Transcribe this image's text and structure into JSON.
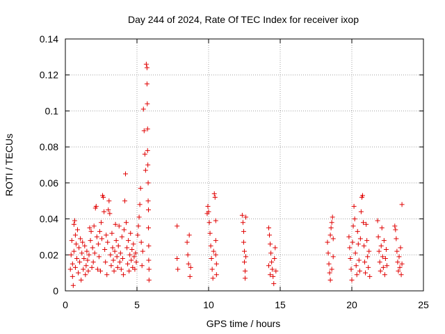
{
  "chart_data": {
    "type": "scatter",
    "title": "Day 244 of 2024, Rate Of TEC Index for receiver ixop",
    "xlabel": "GPS time / hours",
    "ylabel": "ROTI / TECUs",
    "xlim": [
      0,
      25
    ],
    "ylim": [
      0,
      0.14
    ],
    "xticks": [
      0,
      5,
      10,
      15,
      20,
      25
    ],
    "xtick_labels": [
      "0",
      "5",
      "10",
      "15",
      "20",
      "25"
    ],
    "yticks": [
      0,
      0.02,
      0.04,
      0.06,
      0.08,
      0.1,
      0.12,
      0.14
    ],
    "ytick_labels": [
      "0",
      "0.02",
      "0.04",
      "0.06",
      "0.08",
      "0.1",
      "0.12",
      "0.14"
    ],
    "grid": true,
    "marker": "+",
    "color": "#e00000",
    "series": [
      {
        "name": "ROTI",
        "points": [
          [
            0.35,
            0.012
          ],
          [
            0.4,
            0.02
          ],
          [
            0.45,
            0.028
          ],
          [
            0.5,
            0.015
          ],
          [
            0.5,
            0.008
          ],
          [
            0.55,
            0.003
          ],
          [
            0.6,
            0.037
          ],
          [
            0.6,
            0.022
          ],
          [
            0.65,
            0.039
          ],
          [
            0.7,
            0.031
          ],
          [
            0.7,
            0.013
          ],
          [
            0.75,
            0.026
          ],
          [
            0.8,
            0.018
          ],
          [
            0.85,
            0.034
          ],
          [
            0.9,
            0.01
          ],
          [
            0.95,
            0.024
          ],
          [
            1.0,
            0.016
          ],
          [
            1.05,
            0.029
          ],
          [
            1.1,
            0.006
          ],
          [
            1.15,
            0.021
          ],
          [
            1.2,
            0.027
          ],
          [
            1.25,
            0.012
          ],
          [
            1.3,
            0.018
          ],
          [
            1.35,
            0.025
          ],
          [
            1.4,
            0.009
          ],
          [
            1.45,
            0.014
          ],
          [
            1.5,
            0.022
          ],
          [
            1.55,
            0.017
          ],
          [
            1.6,
            0.011
          ],
          [
            1.65,
            0.02
          ],
          [
            1.7,
            0.035
          ],
          [
            1.75,
            0.028
          ],
          [
            1.8,
            0.033
          ],
          [
            1.85,
            0.013
          ],
          [
            1.9,
            0.024
          ],
          [
            1.95,
            0.016
          ],
          [
            2.0,
            0.036
          ],
          [
            2.05,
            0.021
          ],
          [
            2.1,
            0.046
          ],
          [
            2.15,
            0.047
          ],
          [
            2.2,
            0.03
          ],
          [
            2.25,
            0.012
          ],
          [
            2.3,
            0.026
          ],
          [
            2.35,
            0.019
          ],
          [
            2.4,
            0.033
          ],
          [
            2.45,
            0.011
          ],
          [
            2.5,
            0.038
          ],
          [
            2.55,
            0.029
          ],
          [
            2.6,
            0.053
          ],
          [
            2.65,
            0.052
          ],
          [
            2.7,
            0.044
          ],
          [
            2.75,
            0.023
          ],
          [
            2.8,
            0.016
          ],
          [
            2.85,
            0.031
          ],
          [
            2.9,
            0.009
          ],
          [
            2.95,
            0.027
          ],
          [
            3.0,
            0.045
          ],
          [
            3.05,
            0.05
          ],
          [
            3.1,
            0.043
          ],
          [
            3.15,
            0.02
          ],
          [
            3.2,
            0.014
          ],
          [
            3.25,
            0.032
          ],
          [
            3.3,
            0.024
          ],
          [
            3.35,
            0.017
          ],
          [
            3.4,
            0.011
          ],
          [
            3.45,
            0.022
          ],
          [
            3.5,
            0.037
          ],
          [
            3.55,
            0.028
          ],
          [
            3.6,
            0.019
          ],
          [
            3.65,
            0.013
          ],
          [
            3.7,
            0.025
          ],
          [
            3.75,
            0.036
          ],
          [
            3.8,
            0.016
          ],
          [
            3.85,
            0.021
          ],
          [
            3.9,
            0.012
          ],
          [
            3.95,
            0.03
          ],
          [
            4.0,
            0.018
          ],
          [
            4.05,
            0.009
          ],
          [
            4.1,
            0.034
          ],
          [
            4.15,
            0.05
          ],
          [
            4.2,
            0.065
          ],
          [
            4.25,
            0.038
          ],
          [
            4.3,
            0.024
          ],
          [
            4.35,
            0.015
          ],
          [
            4.4,
            0.028
          ],
          [
            4.45,
            0.011
          ],
          [
            4.5,
            0.02
          ],
          [
            4.55,
            0.032
          ],
          [
            4.6,
            0.017
          ],
          [
            4.65,
            0.023
          ],
          [
            4.7,
            0.013
          ],
          [
            4.75,
            0.026
          ],
          [
            4.8,
            0.019
          ],
          [
            4.85,
            0.012
          ],
          [
            4.9,
            0.021
          ],
          [
            4.95,
            0.016
          ],
          [
            5.05,
            0.031
          ],
          [
            5.1,
            0.036
          ],
          [
            5.15,
            0.041
          ],
          [
            5.2,
            0.048
          ],
          [
            5.25,
            0.057
          ],
          [
            5.3,
            0.027
          ],
          [
            5.35,
            0.014
          ],
          [
            5.4,
            0.022
          ],
          [
            5.45,
            0.101
          ],
          [
            5.5,
            0.089
          ],
          [
            5.55,
            0.076
          ],
          [
            5.6,
            0.067
          ],
          [
            5.65,
            0.126
          ],
          [
            5.7,
            0.124
          ],
          [
            5.7,
            0.115
          ],
          [
            5.72,
            0.104
          ],
          [
            5.74,
            0.09
          ],
          [
            5.74,
            0.078
          ],
          [
            5.76,
            0.07
          ],
          [
            5.78,
            0.06
          ],
          [
            5.78,
            0.05
          ],
          [
            5.8,
            0.045
          ],
          [
            5.8,
            0.035
          ],
          [
            5.82,
            0.025
          ],
          [
            5.82,
            0.017
          ],
          [
            5.84,
            0.012
          ],
          [
            5.84,
            0.006
          ],
          [
            7.8,
            0.036
          ],
          [
            7.8,
            0.018
          ],
          [
            7.85,
            0.012
          ],
          [
            8.5,
            0.027
          ],
          [
            8.55,
            0.02
          ],
          [
            8.6,
            0.015
          ],
          [
            8.65,
            0.031
          ],
          [
            8.7,
            0.008
          ],
          [
            8.75,
            0.013
          ],
          [
            9.9,
            0.043
          ],
          [
            9.95,
            0.047
          ],
          [
            10.0,
            0.044
          ],
          [
            10.05,
            0.038
          ],
          [
            10.1,
            0.032
          ],
          [
            10.15,
            0.025
          ],
          [
            10.2,
            0.018
          ],
          [
            10.25,
            0.012
          ],
          [
            10.3,
            0.007
          ],
          [
            10.35,
            0.022
          ],
          [
            10.4,
            0.054
          ],
          [
            10.45,
            0.052
          ],
          [
            10.5,
            0.039
          ],
          [
            10.5,
            0.028
          ],
          [
            10.55,
            0.015
          ],
          [
            10.55,
            0.009
          ],
          [
            10.5,
            0.02
          ],
          [
            12.35,
            0.042
          ],
          [
            12.4,
            0.038
          ],
          [
            12.45,
            0.033
          ],
          [
            12.45,
            0.027
          ],
          [
            12.5,
            0.022
          ],
          [
            12.5,
            0.016
          ],
          [
            12.55,
            0.011
          ],
          [
            12.55,
            0.007
          ],
          [
            12.6,
            0.041
          ],
          [
            12.6,
            0.019
          ],
          [
            14.2,
            0.035
          ],
          [
            14.25,
            0.031
          ],
          [
            14.3,
            0.026
          ],
          [
            14.35,
            0.021
          ],
          [
            14.4,
            0.016
          ],
          [
            14.45,
            0.012
          ],
          [
            14.5,
            0.008
          ],
          [
            14.55,
            0.004
          ],
          [
            14.6,
            0.018
          ],
          [
            14.65,
            0.024
          ],
          [
            14.7,
            0.011
          ],
          [
            14.2,
            0.014
          ],
          [
            14.3,
            0.009
          ],
          [
            18.3,
            0.027
          ],
          [
            18.35,
            0.021
          ],
          [
            18.4,
            0.015
          ],
          [
            18.45,
            0.01
          ],
          [
            18.5,
            0.031
          ],
          [
            18.55,
            0.035
          ],
          [
            18.6,
            0.038
          ],
          [
            18.65,
            0.041
          ],
          [
            18.7,
            0.029
          ],
          [
            18.7,
            0.019
          ],
          [
            18.6,
            0.012
          ],
          [
            18.5,
            0.006
          ],
          [
            19.8,
            0.03
          ],
          [
            19.85,
            0.024
          ],
          [
            19.9,
            0.018
          ],
          [
            19.95,
            0.012
          ],
          [
            20.0,
            0.006
          ],
          [
            20.05,
            0.027
          ],
          [
            20.1,
            0.036
          ],
          [
            20.15,
            0.047
          ],
          [
            20.2,
            0.04
          ],
          [
            20.25,
            0.021
          ],
          [
            20.3,
            0.014
          ],
          [
            20.35,
            0.009
          ],
          [
            20.4,
            0.033
          ],
          [
            20.45,
            0.026
          ],
          [
            20.5,
            0.017
          ],
          [
            20.55,
            0.011
          ],
          [
            20.6,
            0.029
          ],
          [
            20.65,
            0.044
          ],
          [
            20.7,
            0.052
          ],
          [
            20.75,
            0.053
          ],
          [
            20.8,
            0.038
          ],
          [
            20.85,
            0.025
          ],
          [
            20.9,
            0.016
          ],
          [
            20.95,
            0.01
          ],
          [
            21.0,
            0.037
          ],
          [
            21.05,
            0.028
          ],
          [
            21.1,
            0.019
          ],
          [
            21.15,
            0.013
          ],
          [
            21.2,
            0.022
          ],
          [
            21.25,
            0.008
          ],
          [
            21.8,
            0.039
          ],
          [
            21.85,
            0.03
          ],
          [
            21.9,
            0.022
          ],
          [
            21.95,
            0.016
          ],
          [
            22.0,
            0.011
          ],
          [
            22.05,
            0.025
          ],
          [
            22.1,
            0.035
          ],
          [
            22.15,
            0.019
          ],
          [
            22.2,
            0.013
          ],
          [
            22.25,
            0.028
          ],
          [
            22.3,
            0.009
          ],
          [
            22.35,
            0.018
          ],
          [
            22.4,
            0.023
          ],
          [
            22.45,
            0.014
          ],
          [
            23.0,
            0.036
          ],
          [
            23.05,
            0.034
          ],
          [
            23.1,
            0.029
          ],
          [
            23.15,
            0.022
          ],
          [
            23.2,
            0.016
          ],
          [
            23.25,
            0.011
          ],
          [
            23.3,
            0.019
          ],
          [
            23.35,
            0.013
          ],
          [
            23.4,
            0.024
          ],
          [
            23.45,
            0.009
          ],
          [
            23.5,
            0.048
          ],
          [
            23.5,
            0.015
          ]
        ]
      }
    ]
  }
}
